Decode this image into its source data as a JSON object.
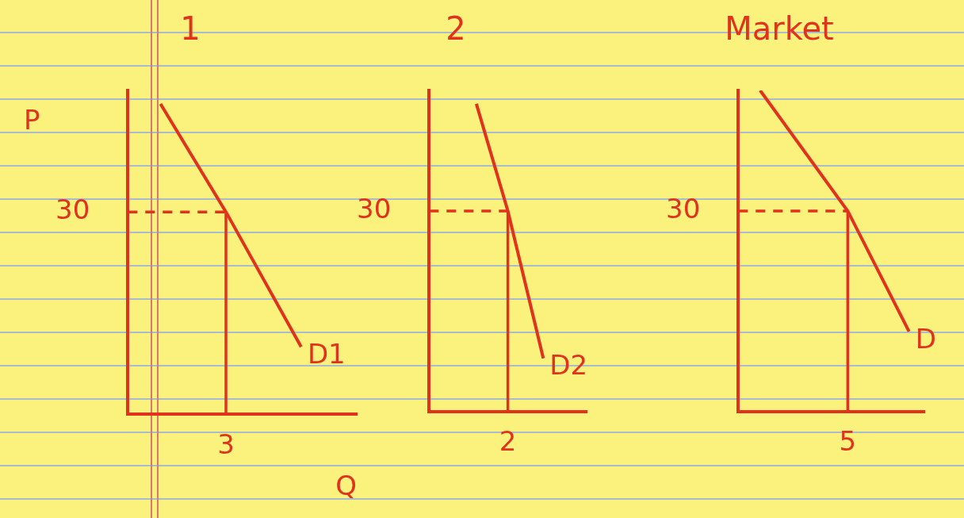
{
  "chart_data": [
    {
      "type": "line",
      "title": "1",
      "xlabel": "Q",
      "ylabel": "P",
      "xlim": [
        0,
        7
      ],
      "ylim": [
        0,
        48
      ],
      "xticks": [
        3
      ],
      "yticks": [
        30
      ],
      "grid": false,
      "series": [
        {
          "name": "D1",
          "color": "#e0321c",
          "x": [
            1,
            3,
            5.3
          ],
          "values": [
            46,
            30,
            10
          ]
        }
      ],
      "equilibrium": {
        "x": 3,
        "y": 30
      }
    },
    {
      "type": "line",
      "title": "2",
      "xlim": [
        0,
        4
      ],
      "ylim": [
        0,
        48
      ],
      "xticks": [
        2
      ],
      "yticks": [
        30
      ],
      "grid": false,
      "series": [
        {
          "name": "D2",
          "color": "#e0321c",
          "x": [
            1.2,
            2,
            2.9
          ],
          "values": [
            46,
            30,
            8
          ]
        }
      ],
      "equilibrium": {
        "x": 2,
        "y": 30
      }
    },
    {
      "type": "line",
      "title": "Market",
      "xlim": [
        0,
        8.5
      ],
      "ylim": [
        0,
        48
      ],
      "xticks": [
        5
      ],
      "yticks": [
        30
      ],
      "grid": false,
      "series": [
        {
          "name": "D",
          "color": "#e0321c",
          "x": [
            1,
            5,
            7.8
          ],
          "values": [
            48,
            30,
            12
          ]
        }
      ],
      "equilibrium": {
        "x": 5,
        "y": 30
      }
    }
  ]
}
